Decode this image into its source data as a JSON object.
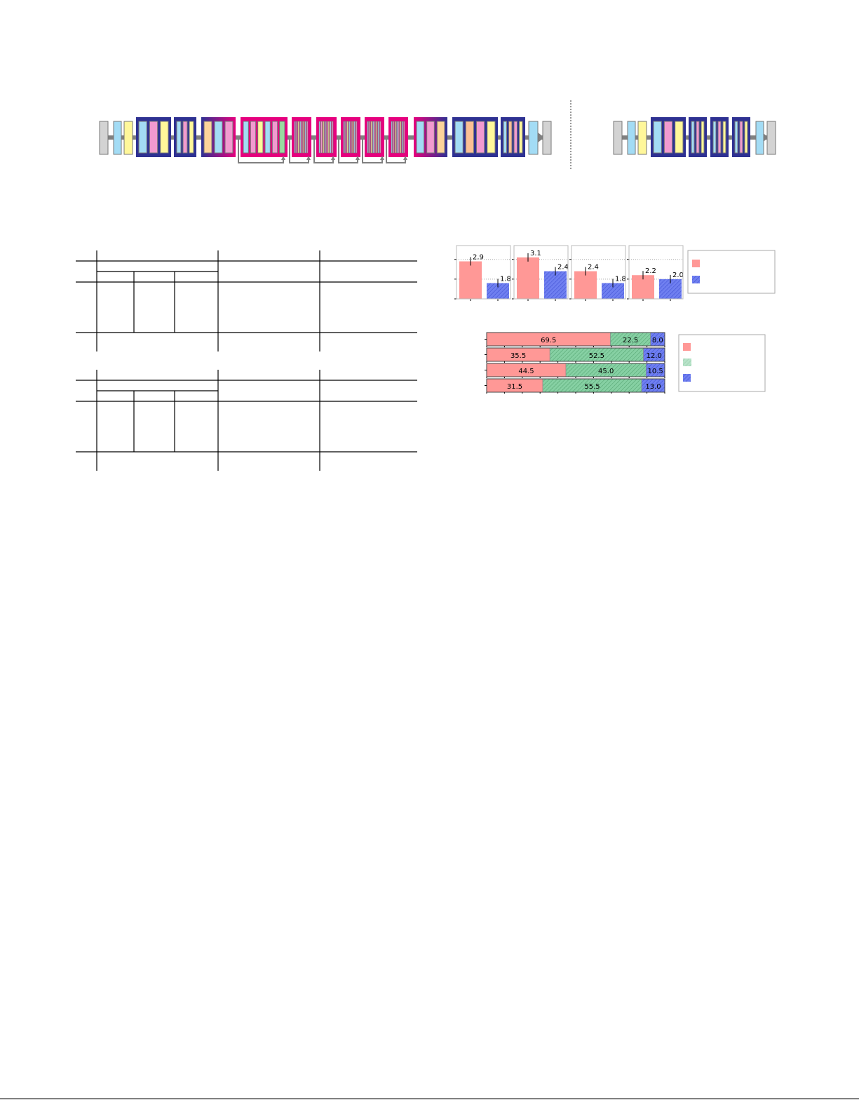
{
  "colors": {
    "gray": "#d3d3d3",
    "light_blue": "#a3dcf5",
    "yellow": "#fff79a",
    "pink": "#f29ad0",
    "peach": "#fcd39a",
    "orange": "#fbbf94",
    "green": "#98dca0",
    "navy": "#2e3192",
    "magenta": "#e6007e",
    "arrow": "#808080",
    "bar_red": "#ff9896",
    "bar_blue": "#6f7ff0",
    "bar_green": "#86d0a3"
  },
  "chart_data": [
    {
      "type": "bar",
      "panels": [
        {
          "values": [
            2.9,
            1.8
          ]
        },
        {
          "values": [
            3.1,
            2.4
          ]
        },
        {
          "values": [
            2.4,
            1.8
          ]
        },
        {
          "values": [
            2.2,
            2.0
          ]
        }
      ],
      "data_labels": [
        [
          "2.9",
          "1.8"
        ],
        [
          "3.1",
          "2.4"
        ],
        [
          "2.4",
          "1.8"
        ],
        [
          "2.2",
          "2.0"
        ]
      ],
      "error_bars": true,
      "ylim": [
        1.0,
        3.7
      ],
      "grid": "horizontal dotted",
      "legend": "right",
      "series_colors": [
        "#ff9896",
        "#6f7ff0"
      ],
      "series_hatch": [
        false,
        true
      ]
    },
    {
      "type": "bar",
      "orientation": "horizontal-stacked",
      "rows": [
        [
          69.5,
          22.5,
          8.0
        ],
        [
          35.5,
          52.5,
          12.0
        ],
        [
          44.5,
          45.0,
          10.5
        ],
        [
          31.5,
          55.5,
          13.0
        ]
      ],
      "data_labels": [
        [
          "69.5",
          "22.5",
          "8.0"
        ],
        [
          "35.5",
          "52.5",
          "12.0"
        ],
        [
          "44.5",
          "45.0",
          "10.5"
        ],
        [
          "31.5",
          "55.5",
          "13.0"
        ]
      ],
      "xlim": [
        0,
        100
      ],
      "legend": "right",
      "series_colors": [
        "#ff9896",
        "#86d0a3",
        "#6f7ff0"
      ],
      "series_hatch": [
        false,
        true,
        true
      ]
    }
  ]
}
